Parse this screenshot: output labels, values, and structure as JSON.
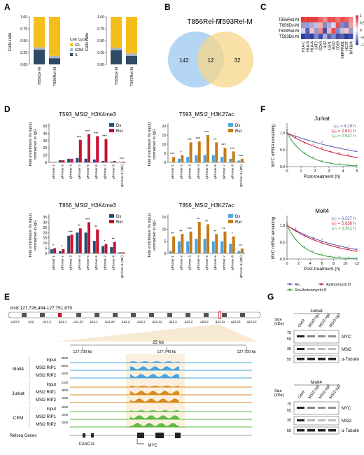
{
  "panel_letters": [
    "A",
    "B",
    "C",
    "D",
    "E",
    "F",
    "G"
  ],
  "colors": {
    "g1": "#F5BF1B",
    "g2m": "#A9B7C2",
    "s": "#2E4A65",
    "dx": "#1F4E79",
    "rel": "#C8102E",
    "dx_lt": "#4AA3DF",
    "rel_lt": "#C57A16",
    "venn_left": "#9CC8EE",
    "venn_right": "#F6D58A",
    "track_molt4": "#4AA3DF",
    "track_jurkat": "#D98A1E",
    "track_cem": "#5DBB46",
    "ro": "#5B5BA8",
    "actd": "#C8102E",
    "ro_actd": "#2E9E3A"
  },
  "A": {
    "ylabel": "Cells ratio",
    "yticks": [
      "0.00",
      "0.25",
      "0.50",
      "0.75",
      "1.00"
    ],
    "legend_title": "Cell Cycle",
    "legend": [
      "G1",
      "G2M",
      "S"
    ],
    "left": {
      "bars": [
        {
          "label": "T856Dx-M",
          "s": 0.31,
          "g2m": 0.05,
          "g1": 0.64
        },
        {
          "label": "T856Rel-M",
          "s": 0.13,
          "g2m": 0.05,
          "g1": 0.82
        }
      ]
    },
    "right": {
      "bars": [
        {
          "label": "T593Dx-M",
          "s": 0.3,
          "g2m": 0.05,
          "g1": 0.65
        },
        {
          "label": "T593Rel-M",
          "s": 0.18,
          "g2m": 0.05,
          "g1": 0.77
        }
      ]
    }
  },
  "B": {
    "left_title": "T856Rel-M",
    "right_title": "T593Rel-M",
    "left_only": "142",
    "overlap": "12",
    "right_only": "32"
  },
  "C": {
    "rows": [
      "T856Rel-M",
      "T856Dx-M",
      "T593Rel-M",
      "T593Dx-M"
    ],
    "cols": [
      "HLA-C",
      "HLA-B",
      "HLA-A",
      "LAT2",
      "SOX4",
      "IL32",
      "LSP1",
      "MSI2",
      "CD69",
      "SERPINB1",
      "HCST",
      "NFKBIA"
    ],
    "values": [
      [
        1,
        1,
        1,
        1,
        0.8,
        0.6,
        0.9,
        0.9,
        0.7,
        0.9,
        0.8,
        0.6
      ],
      [
        -0.5,
        -0.5,
        -0.4,
        -0.3,
        0.4,
        -0.6,
        -0.4,
        -0.2,
        0.9,
        -0.6,
        -0.7,
        0.5
      ],
      [
        -0.2,
        -0.8,
        0.3,
        -0.5,
        0.6,
        -0.9,
        0.4,
        0.9,
        -0.6,
        -0.3,
        0.3,
        -0.5
      ],
      [
        -1,
        -0.9,
        -1,
        -0.6,
        -0.9,
        -0.4,
        -0.8,
        -0.6,
        -0.9,
        -0.8,
        -1,
        -0.9
      ]
    ],
    "scale_ticks": [
      "1",
      "0.5",
      "0",
      "−0.5",
      "−1"
    ]
  },
  "D": {
    "ylabel": "Fold enrichment (% input) normalized to IgG",
    "categories": [
      "qPrimer-1",
      "qPrimer-2",
      "qPrimer-3",
      "qPrimer-4",
      "qPrimer-5",
      "qPrimer-6",
      "qPrimer-7",
      "qPrimer-8",
      "qPrimer-9 (NC)"
    ],
    "legend": [
      "Dx",
      "Rel"
    ],
    "charts": [
      {
        "title": "T593_MSI2_H3K4me3",
        "yticks": [
          "0",
          "10",
          "20",
          "30",
          "40",
          "50"
        ],
        "ymax": 50,
        "dx": [
          0.5,
          3,
          5,
          6,
          5,
          4,
          2,
          1,
          0.5
        ],
        "rel": [
          0.5,
          3,
          5,
          31,
          39,
          36,
          32,
          2,
          1
        ],
        "stars": [
          "",
          "",
          "",
          "***",
          "***",
          "***",
          "***",
          "",
          "***"
        ],
        "palette": "dark"
      },
      {
        "title": "T593_MSI2_H3K27ac",
        "yticks": [
          "0",
          "5",
          "10",
          "15",
          "20"
        ],
        "ymax": 20,
        "dx": [
          0.3,
          2,
          3,
          4,
          4,
          4,
          3,
          2,
          1
        ],
        "rel": [
          3,
          4,
          11,
          11.5,
          15,
          11,
          8,
          6,
          2
        ],
        "stars": [
          "***",
          "*",
          "***",
          "***",
          "***",
          "**",
          "***",
          "***",
          "***"
        ],
        "palette": "light"
      },
      {
        "title": "T856_MSI2_H3K4me3",
        "yticks": [
          "0",
          "5",
          "10",
          "15",
          "20",
          "25",
          "30",
          "35"
        ],
        "ymax": 35,
        "dx": [
          4,
          2,
          17,
          20,
          20,
          12,
          7,
          6,
          1
        ],
        "rel": [
          5,
          4,
          18,
          24,
          30,
          23,
          9,
          11,
          1
        ],
        "stars": [
          "*",
          "*",
          "***",
          "**",
          "***",
          "**",
          "*",
          "**",
          ""
        ],
        "palette": "dark"
      },
      {
        "title": "T856_MSI2_H3K27ac",
        "yticks": [
          "0",
          "5",
          "10",
          "15"
        ],
        "ymax": 15,
        "dx": [
          1,
          5,
          5,
          6,
          6,
          5,
          5,
          4,
          1
        ],
        "rel": [
          7,
          8,
          9,
          13,
          12,
          8,
          9,
          7,
          2
        ],
        "stars": [
          "**",
          "**",
          "***",
          "**",
          "**",
          "**",
          "**",
          "*",
          "**"
        ],
        "palette": "light"
      }
    ]
  },
  "E": {
    "locus": "chr8:127,726,494-127,751,879",
    "bands": [
      "p23.2",
      "p22",
      "p21.3",
      "p21.1",
      "p11.23",
      "p11.1",
      "q11.22",
      "q12.2",
      "q13.2",
      "q21.12",
      "q21.2",
      "q22.2",
      "q23.2",
      "q24.11",
      "q24.21",
      "q24.23"
    ],
    "scale": "25 kb",
    "ticks": [
      "127,730 kb",
      "127,740 kb",
      "127,750 kb"
    ],
    "groups": [
      {
        "name": "Molt4",
        "color_key": "track_molt4",
        "tracks": [
          "Input",
          "MSI2 RIP1",
          "MSI2 RIP2"
        ],
        "ranges": [
          "2500",
          "6000",
          "1900"
        ]
      },
      {
        "name": "Jurkat",
        "color_key": "track_jurkat",
        "tracks": [
          "Input",
          "MSI2 RIP1",
          "MSI2 RIP2"
        ],
        "ranges": [
          "2100",
          "4000",
          "1500"
        ]
      },
      {
        "name": "CEM",
        "color_key": "track_cem",
        "tracks": [
          "Input",
          "MSI2 RIP1",
          "MSI2 RIP2"
        ],
        "ranges": [
          "1500",
          "1000",
          "1500"
        ]
      }
    ],
    "genes_label": "Refseq Genes",
    "genes": [
      "CASC11",
      "MYC"
    ]
  },
  "F": {
    "ylabel": "MYC mRNA remaining",
    "xlabel": "Post-treatment (h)",
    "charts": [
      {
        "title": "Jurkat",
        "xticks": [
          "0",
          "1",
          "2",
          "3",
          "4",
          "5"
        ],
        "xmax": 5,
        "yticks": [
          "0.0",
          "0.5",
          "1.0"
        ],
        "t_lines": [
          {
            "text": "t₁/₂ = 4.28 h",
            "color_key": "ro"
          },
          {
            "text": "t₁/₂ = 2.631 h",
            "color_key": "actd"
          },
          {
            "text": "t₁/₂ = 0.927 h",
            "color_key": "ro_actd"
          }
        ],
        "half_lives": [
          4.28,
          2.631,
          0.927
        ]
      },
      {
        "title": "Molt4",
        "xticks": [
          "0",
          "2",
          "4",
          "6",
          "8",
          "10",
          "12"
        ],
        "xmax": 12,
        "yticks": [
          "0.0",
          "0.5",
          "1.0"
        ],
        "t_lines": [
          {
            "text": "t₁/₂ = 6.557 h",
            "color_key": "ro"
          },
          {
            "text": "t₁/₂ = 5.636 h",
            "color_key": "actd"
          },
          {
            "text": "t₁/₂ = 1.911 h",
            "color_key": "ro_actd"
          }
        ],
        "half_lives": [
          6.557,
          5.636,
          1.911
        ]
      }
    ],
    "legend": [
      "Ro",
      "Actinomycin D",
      "Ro+Actinomycin D"
    ]
  },
  "G": {
    "blots": [
      {
        "title": "Jurkat",
        "lanes": [
          "Cas9",
          "MSI2-sg1",
          "MSI2-sg2",
          "MSI2-sg3"
        ],
        "size_label": "Size (kDa)",
        "rows": [
          {
            "sizes": [
              "75",
              "55"
            ],
            "label": "MYC"
          },
          {
            "sizes": [
              "35"
            ],
            "label": "MSI2"
          },
          {
            "sizes": [
              "55"
            ],
            "label": "α-Tubulin"
          }
        ]
      },
      {
        "title": "Molt4",
        "lanes": [
          "Cas9",
          "MSI2-sg1",
          "MSI2-sg2",
          "MSI2-sg3"
        ],
        "size_label": "Size (kDa)",
        "rows": [
          {
            "sizes": [
              "75",
              "55"
            ],
            "label": "MYC"
          },
          {
            "sizes": [
              "35"
            ],
            "label": "MSI2"
          },
          {
            "sizes": [
              "55"
            ],
            "label": "α-Tubulin"
          }
        ]
      }
    ]
  }
}
